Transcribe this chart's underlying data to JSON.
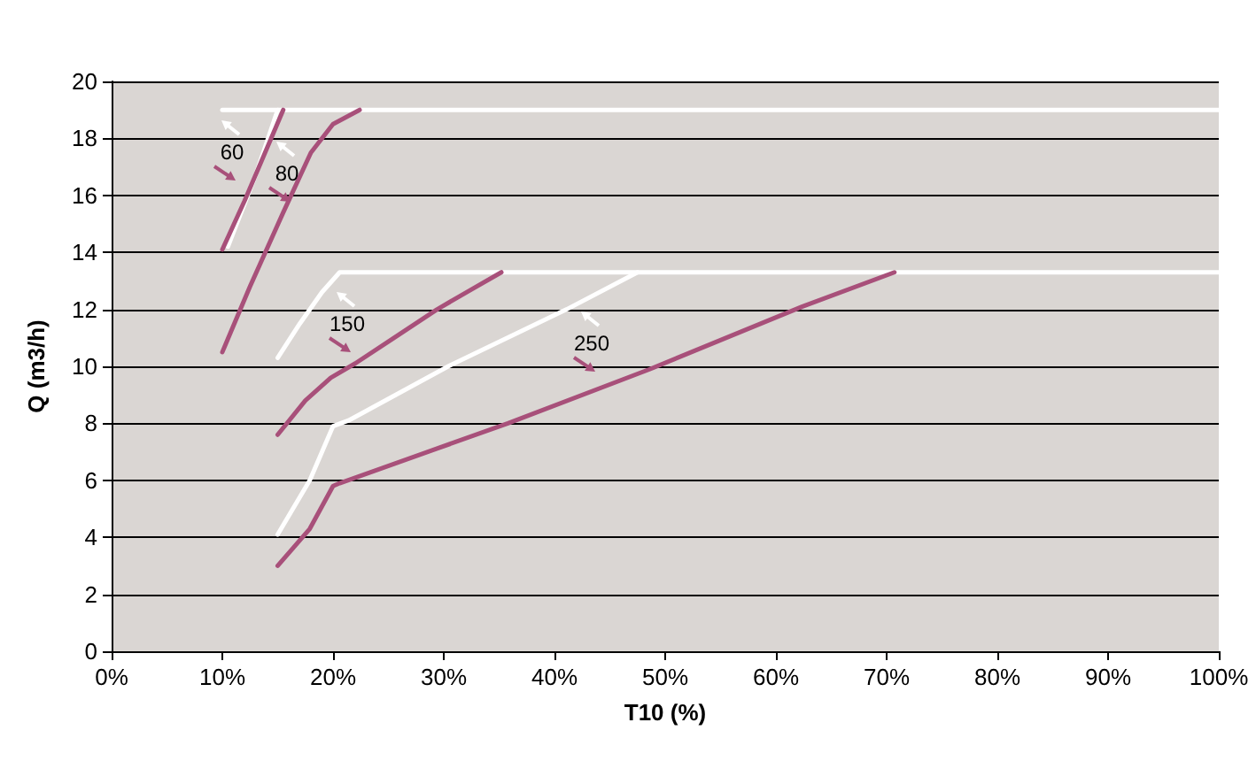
{
  "chart_data": {
    "type": "line",
    "xlabel": "T10 (%)",
    "ylabel": "Q (m3/h)",
    "marker": "none",
    "grid": "y",
    "xlim": [
      0,
      100
    ],
    "ylim": [
      0,
      20
    ],
    "xticks": [
      {
        "value": 0,
        "label": "0%"
      },
      {
        "value": 10,
        "label": "10%"
      },
      {
        "value": 20,
        "label": "20%"
      },
      {
        "value": 30,
        "label": "30%"
      },
      {
        "value": 40,
        "label": "40%"
      },
      {
        "value": 50,
        "label": "50%"
      },
      {
        "value": 60,
        "label": "60%"
      },
      {
        "value": 70,
        "label": "70%"
      },
      {
        "value": 80,
        "label": "80%"
      },
      {
        "value": 90,
        "label": "90%"
      },
      {
        "value": 100,
        "label": "100%"
      }
    ],
    "yticks": [
      0,
      2,
      4,
      6,
      8,
      10,
      12,
      14,
      16,
      18,
      20
    ],
    "series": [
      {
        "color": "#ffffff",
        "x": [
          10,
          100
        ],
        "values": [
          19,
          19
        ]
      },
      {
        "color": "#ffffff",
        "x": [
          10.5,
          13,
          15
        ],
        "values": [
          14.2,
          16.7,
          19
        ]
      },
      {
        "color": "#a8507a",
        "x": [
          10,
          12,
          15.5
        ],
        "values": [
          14.1,
          15.8,
          19
        ]
      },
      {
        "color": "#a8507a",
        "x": [
          10,
          12.5,
          15.5,
          18,
          20,
          22.4
        ],
        "values": [
          10.5,
          12.8,
          15.4,
          17.5,
          18.5,
          19
        ]
      },
      {
        "color": "#ffffff",
        "x": [
          15,
          17,
          19,
          20.6,
          100
        ],
        "values": [
          10.3,
          11.5,
          12.6,
          13.3,
          13.3
        ]
      },
      {
        "color": "#a8507a",
        "x": [
          15,
          17.5,
          19.8,
          22,
          25.5,
          29.4,
          32.5,
          35.2
        ],
        "values": [
          7.6,
          8.8,
          9.6,
          10.1,
          11,
          12,
          12.7,
          13.3
        ]
      },
      {
        "color": "#ffffff",
        "x": [
          15,
          17.9,
          20,
          21.4,
          30.4,
          41.1,
          47.5
        ],
        "values": [
          4.1,
          6,
          7.9,
          8.1,
          10,
          12,
          13.3
        ]
      },
      {
        "color": "#a8507a",
        "x": [
          15,
          17.9,
          20,
          20.6,
          35.8,
          48.6,
          62.4,
          70.7
        ],
        "values": [
          3,
          4.3,
          5.8,
          5.9,
          8,
          9.9,
          12.1,
          13.3
        ]
      }
    ],
    "annotations": [
      "60",
      "80",
      "150",
      "250"
    ]
  }
}
